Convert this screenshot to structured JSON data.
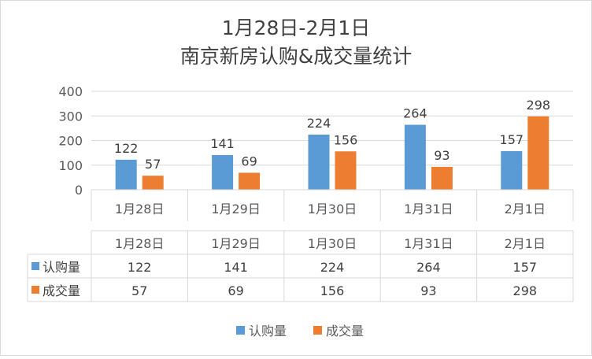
{
  "chart_data": {
    "type": "bar",
    "title": [
      "1月28日-2月1日",
      "南京新房认购&成交量统计"
    ],
    "categories": [
      "1月28日",
      "1月29日",
      "1月30日",
      "1月31日",
      "2月1日"
    ],
    "series": [
      {
        "name": "认购量",
        "color": "#5b9bd5",
        "values": [
          122,
          141,
          224,
          264,
          157
        ]
      },
      {
        "name": "成交量",
        "color": "#ed7d31",
        "values": [
          57,
          69,
          156,
          93,
          298
        ]
      }
    ],
    "ylim": [
      0,
      400
    ],
    "yticks": [
      0,
      100,
      200,
      300,
      400
    ],
    "grid": true,
    "data_table": true,
    "legend_position": "bottom"
  }
}
